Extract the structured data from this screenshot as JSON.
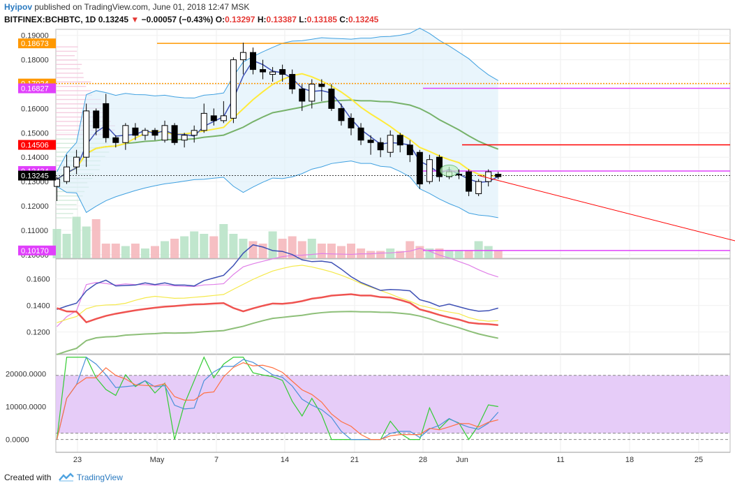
{
  "header": {
    "author": "Hyipov",
    "published": "published on TradingView.com, June 01, 2018 12:47 MSK",
    "symbol": "BITFINEX:BCHBTC, 1D",
    "last": "0.13245",
    "change": "−0.00057 (−0.43%)",
    "o_label": "O:",
    "o": "0.13297",
    "h_label": "H:",
    "h": "0.13387",
    "l_label": "L:",
    "l": "0.13185",
    "c_label": "C:",
    "c": "0.13245"
  },
  "footer": {
    "created": "Created with",
    "brand": "TradingView"
  },
  "colors": {
    "up": "#ffffff",
    "down": "#000000",
    "magenta": "#e040fb",
    "orange": "#ff9800",
    "red": "#ff0000",
    "lilac": "#e3c7f7"
  },
  "chart_data": [
    {
      "type": "candlestick",
      "panel": "price",
      "x_ticks": [
        "23",
        "May",
        "7",
        "14",
        "21",
        "28",
        "Jun",
        "11",
        "18",
        "25"
      ],
      "y_ticks": [
        "0.19000",
        "0.18000",
        "0.17000",
        "0.16000",
        "0.15000",
        "0.14000",
        "0.13000",
        "0.12000",
        "0.11000",
        "0.10000"
      ],
      "ylim": [
        0.0985,
        0.1925
      ],
      "price_tags": [
        {
          "label": "0.18673",
          "value": 0.18673,
          "color": "#ff9800"
        },
        {
          "label": "0.17024",
          "value": 0.17024,
          "color": "#ff9800"
        },
        {
          "label": "0.16827",
          "value": 0.16827,
          "color": "#e040fb"
        },
        {
          "label": "0.14506",
          "value": 0.14506,
          "color": "#ff0000"
        },
        {
          "label": "0.13434",
          "value": 0.13434,
          "color": "#e040fb"
        },
        {
          "label": "0.13245",
          "value": 0.13245,
          "color": "#000000"
        },
        {
          "label": "0.10170",
          "value": 0.1017,
          "color": "#e040fb"
        }
      ],
      "candles": [
        [
          0.128,
          0.131,
          0.122,
          0.132
        ],
        [
          0.13,
          0.136,
          0.129,
          0.141
        ],
        [
          0.136,
          0.14,
          0.133,
          0.143
        ],
        [
          0.14,
          0.159,
          0.136,
          0.162
        ],
        [
          0.159,
          0.152,
          0.149,
          0.16
        ],
        [
          0.162,
          0.148,
          0.146,
          0.166
        ],
        [
          0.148,
          0.146,
          0.144,
          0.149
        ],
        [
          0.146,
          0.153,
          0.143,
          0.154
        ],
        [
          0.152,
          0.149,
          0.147,
          0.154
        ],
        [
          0.149,
          0.151,
          0.147,
          0.152
        ],
        [
          0.151,
          0.149,
          0.147,
          0.152
        ],
        [
          0.147,
          0.153,
          0.146,
          0.155
        ],
        [
          0.153,
          0.146,
          0.145,
          0.154
        ],
        [
          0.147,
          0.149,
          0.144,
          0.15
        ],
        [
          0.149,
          0.151,
          0.146,
          0.153
        ],
        [
          0.151,
          0.158,
          0.15,
          0.162
        ],
        [
          0.157,
          0.155,
          0.153,
          0.16
        ],
        [
          0.155,
          0.157,
          0.154,
          0.163
        ],
        [
          0.156,
          0.18,
          0.154,
          0.181
        ],
        [
          0.18,
          0.183,
          0.174,
          0.187
        ],
        [
          0.183,
          0.176,
          0.174,
          0.185
        ],
        [
          0.176,
          0.175,
          0.172,
          0.18
        ],
        [
          0.174,
          0.175,
          0.171,
          0.177
        ],
        [
          0.176,
          0.174,
          0.171,
          0.178
        ],
        [
          0.174,
          0.168,
          0.166,
          0.176
        ],
        [
          0.168,
          0.163,
          0.159,
          0.17
        ],
        [
          0.163,
          0.17,
          0.16,
          0.172
        ],
        [
          0.17,
          0.169,
          0.163,
          0.172
        ],
        [
          0.168,
          0.16,
          0.159,
          0.17
        ],
        [
          0.16,
          0.155,
          0.153,
          0.162
        ],
        [
          0.156,
          0.152,
          0.149,
          0.158
        ],
        [
          0.152,
          0.147,
          0.145,
          0.154
        ],
        [
          0.147,
          0.146,
          0.141,
          0.149
        ],
        [
          0.146,
          0.143,
          0.14,
          0.148
        ],
        [
          0.142,
          0.149,
          0.14,
          0.151
        ],
        [
          0.149,
          0.145,
          0.142,
          0.15
        ],
        [
          0.145,
          0.141,
          0.138,
          0.147
        ],
        [
          0.142,
          0.129,
          0.127,
          0.143
        ],
        [
          0.13,
          0.139,
          0.129,
          0.141
        ],
        [
          0.14,
          0.132,
          0.13,
          0.141
        ],
        [
          0.132,
          0.134,
          0.131,
          0.136
        ],
        [
          0.133,
          0.133,
          0.131,
          0.135
        ],
        [
          0.134,
          0.126,
          0.124,
          0.135
        ],
        [
          0.125,
          0.13,
          0.124,
          0.131
        ],
        [
          0.13,
          0.134,
          0.128,
          0.135
        ],
        [
          0.133,
          0.132,
          0.131,
          0.134
        ]
      ],
      "volume": [
        12,
        10,
        17,
        13,
        16,
        6,
        6,
        5,
        6,
        4,
        5,
        7,
        8,
        9,
        11,
        10,
        9,
        14,
        10,
        8,
        7,
        6,
        11,
        8,
        9,
        7,
        8,
        6,
        6,
        5,
        6,
        4,
        3,
        3,
        4,
        3,
        7,
        5,
        4,
        4,
        3,
        3,
        3,
        7,
        5,
        3
      ],
      "annotation": {
        "from": [
          43,
          0.1325
        ],
        "to": [
          73,
          0.1017
        ],
        "color": "#ff0000"
      }
    },
    {
      "type": "line",
      "panel": "indicator",
      "y_ticks": [
        "0.1600",
        "0.1400",
        "0.1200"
      ],
      "ylim": [
        0.1035,
        0.175
      ]
    },
    {
      "type": "line",
      "panel": "oscillator",
      "y_ticks": [
        "20000.0000",
        "10000.0000",
        "0.0000"
      ],
      "ylim": [
        -3900,
        25800
      ],
      "band": [
        1900,
        19500
      ]
    }
  ]
}
